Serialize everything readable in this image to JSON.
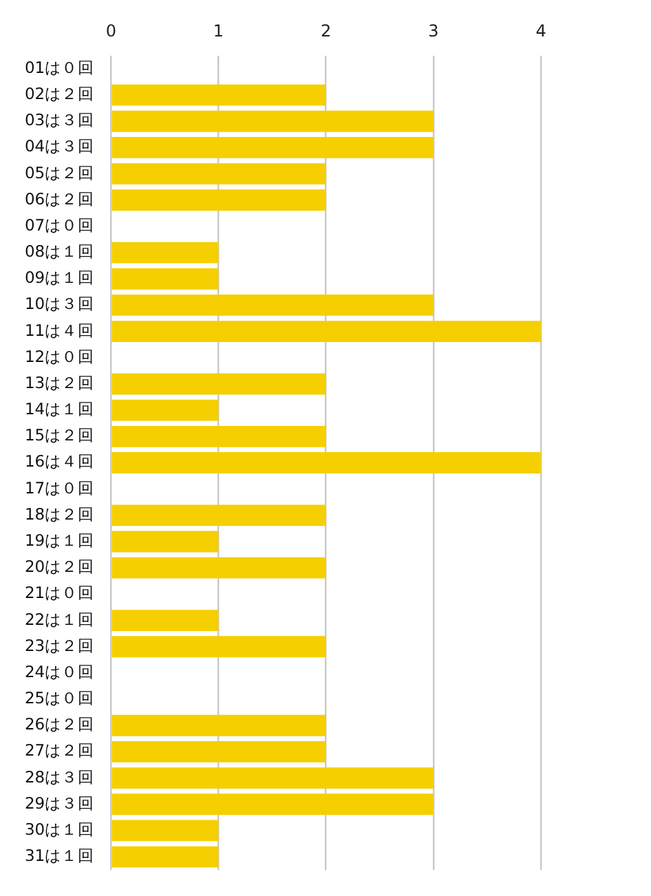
{
  "chart_data": {
    "type": "bar",
    "orientation": "horizontal",
    "categories": [
      "01は０回",
      "02は２回",
      "03は３回",
      "04は３回",
      "05は２回",
      "06は２回",
      "07は０回",
      "08は１回",
      "09は１回",
      "10は３回",
      "11は４回",
      "12は０回",
      "13は２回",
      "14は１回",
      "15は２回",
      "16は４回",
      "17は０回",
      "18は２回",
      "19は１回",
      "20は２回",
      "21は０回",
      "22は１回",
      "23は２回",
      "24は０回",
      "25は０回",
      "26は２回",
      "27は２回",
      "28は３回",
      "29は３回",
      "30は１回",
      "31は１回"
    ],
    "values": [
      0,
      2,
      3,
      3,
      2,
      2,
      0,
      1,
      1,
      3,
      4,
      0,
      2,
      1,
      2,
      4,
      0,
      2,
      1,
      2,
      0,
      1,
      2,
      0,
      0,
      2,
      2,
      3,
      3,
      1,
      1
    ],
    "color": "#f5cf00",
    "xlim": [
      0,
      4
    ],
    "xticks": [
      0,
      1,
      2,
      3,
      4
    ],
    "grid": "x"
  }
}
